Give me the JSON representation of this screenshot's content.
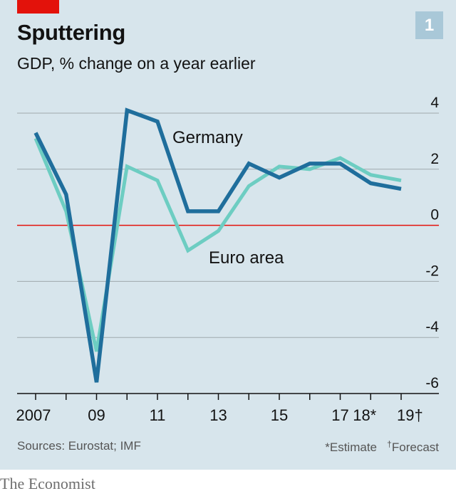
{
  "header": {
    "title": "Sputtering",
    "subtitle": "GDP, % change on a year earlier",
    "badge": "1"
  },
  "footer": {
    "sources": "Sources: Eurostat; IMF",
    "estimate_note": "*Estimate",
    "forecast_mark": "†",
    "forecast_note": "Forecast"
  },
  "brand": "The Economist",
  "colors": {
    "germany": "#1f6e9c",
    "euro_area": "#6dcdc2",
    "zero_line": "#e3120b",
    "grid": "#9fa9ad",
    "panel": "#d7e5ec"
  },
  "chart_data": {
    "type": "line",
    "x": [
      2007,
      2008,
      2009,
      2010,
      2011,
      2012,
      2013,
      2014,
      2015,
      2016,
      2017,
      2018,
      2019
    ],
    "x_tick_values": [
      2007,
      2009,
      2011,
      2013,
      2015,
      2017,
      2018,
      2019
    ],
    "x_tick_labels": [
      "2007",
      "09",
      "11",
      "13",
      "15",
      "17",
      "18*",
      "19†"
    ],
    "series": [
      {
        "name": "Germany",
        "values": [
          3.3,
          1.1,
          -5.6,
          4.1,
          3.7,
          0.5,
          0.5,
          2.2,
          1.7,
          2.2,
          2.2,
          1.5,
          1.3
        ]
      },
      {
        "name": "Euro area",
        "values": [
          3.1,
          0.5,
          -4.5,
          2.1,
          1.6,
          -0.9,
          -0.2,
          1.4,
          2.1,
          2.0,
          2.4,
          1.8,
          1.6
        ]
      }
    ],
    "ylim": [
      -6,
      4
    ],
    "y_ticks": [
      4,
      2,
      0,
      -2,
      -4,
      -6
    ],
    "y_tick_labels": [
      "4",
      "2",
      "0",
      "-2",
      "-4",
      "-6"
    ],
    "grid": true,
    "y_axis_side": "right"
  }
}
